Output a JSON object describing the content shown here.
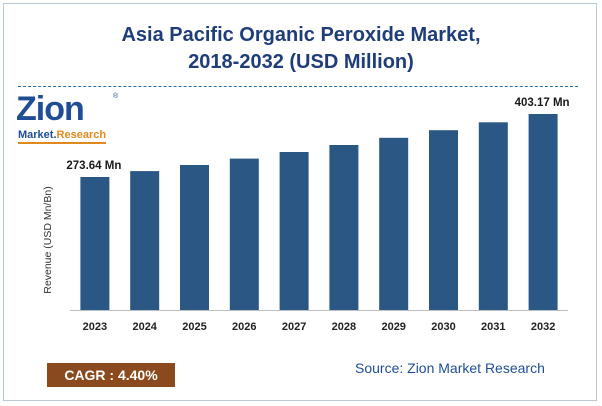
{
  "header": {
    "title_line1": "Asia Pacific Organic Peroxide Market,",
    "title_line2": "2018-2032  (USD Million)"
  },
  "logo": {
    "brand": "Zion",
    "sub_part1": "Market.",
    "sub_part2": "Research",
    "registered": "®"
  },
  "footer": {
    "cagr": "CAGR : 4.40%",
    "source": "Source: Zion Market Research"
  },
  "colors": {
    "bar": "#2a5783",
    "title": "#1f3d7a",
    "cagr_bg": "#8a4a1d",
    "accent": "#e08a1e"
  },
  "chart_data": {
    "type": "bar",
    "title": "Asia Pacific Organic Peroxide Market, 2018-2032  (USD Million)",
    "ylabel": "Revenue (USD Mn/Bn)",
    "xlabel": "",
    "categories": [
      "2023",
      "2024",
      "2025",
      "2026",
      "2027",
      "2028",
      "2029",
      "2030",
      "2031",
      "2032"
    ],
    "values": [
      273.64,
      285.68,
      298.25,
      311.37,
      325.07,
      339.38,
      354.31,
      369.9,
      386.17,
      403.17
    ],
    "data_labels": [
      {
        "category": "2023",
        "text": "273.64 Mn"
      },
      {
        "category": "2032",
        "text": "403.17 Mn"
      }
    ],
    "ylim": [
      0,
      430
    ],
    "grid": false,
    "legend": "none"
  }
}
